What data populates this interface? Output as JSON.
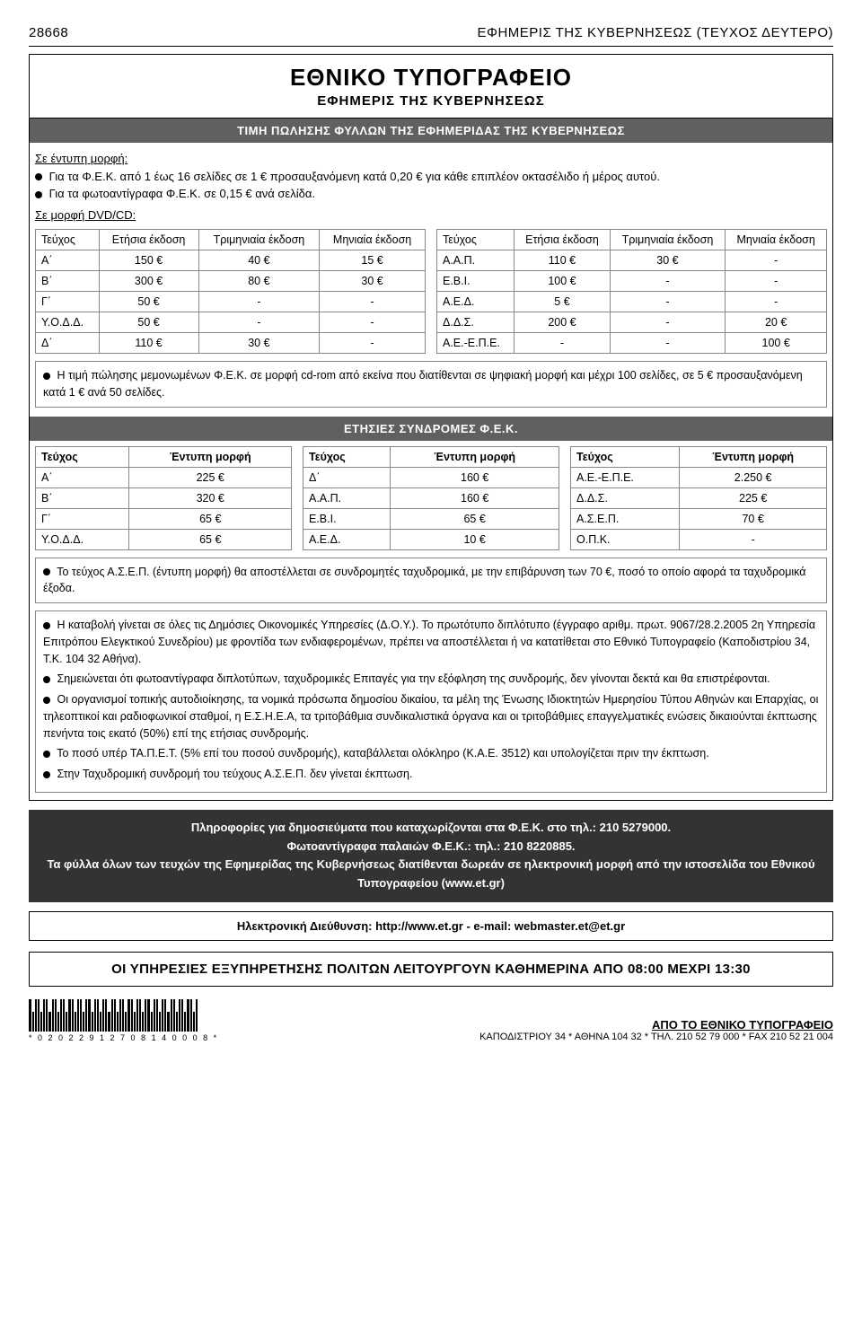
{
  "header": {
    "page_number": "28668",
    "title": "ΕΦΗΜΕΡΙΣ ΤΗΣ ΚΥΒΕΡΝΗΣΕΩΣ (ΤΕΥΧΟΣ ΔΕΥΤΕΡΟ)"
  },
  "title_box": {
    "main": "ΕΘΝΙΚΟ ΤΥΠΟΓΡΑΦΕΙΟ",
    "sub": "ΕΦΗΜΕΡΙΣ ΤΗΣ ΚΥΒΕΡΝΗΣΕΩΣ"
  },
  "sale_bar": "ΤΙΜΗ ΠΩΛΗΣΗΣ ΦΥΛΛΩΝ ΤΗΣ ΕΦΗΜΕΡΙΔΑΣ ΤΗΣ ΚΥΒΕΡΝΗΣΕΩΣ",
  "intro": {
    "printed_label": "Σε έντυπη μορφή:",
    "line1": "Για τα Φ.Ε.Κ. από 1 έως 16 σελίδες σε 1 € προσαυξανόμενη κατά 0,20 € για κάθε επιπλέον οκτασέλιδο ή μέρος αυτού.",
    "line2": "Για τα φωτοαντίγραφα Φ.Ε.Κ. σε 0,15 € ανά σελίδα.",
    "dvd_label": "Σε μορφή DVD/CD:"
  },
  "dvd_headers": [
    "Τεύχος",
    "Ετήσια έκδοση",
    "Τριμηνιαία έκδοση",
    "Μηνιαία έκδοση"
  ],
  "dvd_left_rows": [
    [
      "Α΄",
      "150 €",
      "40 €",
      "15 €"
    ],
    [
      "Β΄",
      "300 €",
      "80 €",
      "30 €"
    ],
    [
      "Γ΄",
      "50 €",
      "-",
      "-"
    ],
    [
      "Υ.Ο.Δ.Δ.",
      "50 €",
      "-",
      "-"
    ],
    [
      "Δ΄",
      "110 €",
      "30 €",
      "-"
    ]
  ],
  "dvd_right_rows": [
    [
      "Α.Α.Π.",
      "110 €",
      "30 €",
      "-"
    ],
    [
      "Ε.Β.Ι.",
      "100 €",
      "-",
      "-"
    ],
    [
      "Α.Ε.Δ.",
      "5 €",
      "-",
      "-"
    ],
    [
      "Δ.Δ.Σ.",
      "200 €",
      "-",
      "20 €"
    ],
    [
      "Α.Ε.-Ε.Π.Ε.",
      "-",
      "-",
      "100 €"
    ]
  ],
  "dvd_note": "Η τιμή πώλησης μεμονωμένων Φ.Ε.Κ. σε μορφή cd-rom από εκείνα που διατίθενται σε ψηφιακή μορφή και μέχρι 100 σελίδες, σε 5 € προσαυξανόμενη κατά 1 € ανά 50 σελίδες.",
  "subs_bar": "ΕΤΗΣΙΕΣ ΣΥΝΔΡΟΜΕΣ Φ.Ε.Κ.",
  "subs_headers": [
    "Τεύχος",
    "Έντυπη μορφή"
  ],
  "subs_col1": [
    [
      "Α΄",
      "225 €"
    ],
    [
      "Β΄",
      "320 €"
    ],
    [
      "Γ΄",
      "65 €"
    ],
    [
      "Υ.Ο.Δ.Δ.",
      "65 €"
    ]
  ],
  "subs_col2": [
    [
      "Δ΄",
      "160 €"
    ],
    [
      "Α.Α.Π.",
      "160 €"
    ],
    [
      "Ε.Β.Ι.",
      "65 €"
    ],
    [
      "Α.Ε.Δ.",
      "10 €"
    ]
  ],
  "subs_col3": [
    [
      "Α.Ε.-Ε.Π.Ε.",
      "2.250 €"
    ],
    [
      "Δ.Δ.Σ.",
      "225 €"
    ],
    [
      "Α.Σ.Ε.Π.",
      "70 €"
    ],
    [
      "Ο.Π.Κ.",
      "-"
    ]
  ],
  "subs_note": "Το τεύχος Α.Σ.Ε.Π. (έντυπη μορφή) θα αποστέλλεται σε συνδρομητές ταχυδρομικά, με την επιβάρυνση των 70 €, ποσό το οποίο αφορά τα ταχυδρομικά έξοδα.",
  "terms": [
    "Η καταβολή γίνεται σε όλες τις Δημόσιες Οικονομικές Υπηρεσίες (Δ.Ο.Υ.). Το πρωτότυπο διπλότυπο (έγγραφο αριθμ. πρωτ. 9067/28.2.2005 2η Υπηρεσία Επιτρόπου Ελεγκτικού Συνεδρίου) με φροντίδα των ενδιαφερομένων, πρέπει να αποστέλλεται ή να κατατίθεται στο Εθνικό Τυπογραφείο (Καποδιστρίου 34, Τ.Κ. 104 32 Αθήνα).",
    "Σημειώνεται ότι φωτοαντίγραφα διπλοτύπων, ταχυδρομικές Επιταγές για την εξόφληση της συνδρομής, δεν γίνονται δεκτά και θα επιστρέφονται.",
    "Οι οργανισμοί τοπικής αυτοδιοίκησης, τα νομικά πρόσωπα δημοσίου δικαίου, τα μέλη της Ένωσης Ιδιοκτητών Ημερησίου Τύπου Αθηνών και Επαρχίας, οι τηλεοπτικοί και ραδιοφωνικοί σταθμοί, η Ε.Σ.Η.Ε.Α, τα τριτοβάθμια συνδικαλιστικά όργανα και οι τριτοβάθμιες επαγγελματικές ενώσεις δικαιούνται έκπτωσης πενήντα τοις εκατό (50%) επί της ετήσιας συνδρομής.",
    "Το ποσό υπέρ ΤΑ.Π.Ε.Τ. (5% επί του ποσού συνδρομής), καταβάλλεται ολόκληρο (Κ.Α.Ε. 3512) και υπολογίζεται πριν την έκπτωση.",
    "Στην Ταχυδρομική συνδρομή του τεύχους Α.Σ.Ε.Π. δεν γίνεται έκπτωση."
  ],
  "info_bar": {
    "line1": "Πληροφορίες  για δημοσιεύματα που καταχωρίζονται στα Φ.Ε.Κ. στο τηλ.: 210 5279000.",
    "line2": "Φωτοαντίγραφα παλαιών Φ.Ε.Κ.: τηλ.: 210 8220885.",
    "line3": "Τα φύλλα όλων των τευχών της Εφημερίδας της Κυβερνήσεως διατίθενται δωρεάν σε ηλεκτρονική μορφή από την ιστοσελίδα του Εθνικού Τυπογραφείου (www.et.gr)"
  },
  "web_box": "Ηλεκτρονική Διεύθυνση: http://www.et.gr - e-mail: webmaster.et@et.gr",
  "hours_box": "ΟΙ ΥΠΗΡΕΣΙΕΣ ΕΞΥΠΗΡΕΤΗΣΗΣ ΠΟΛΙΤΩΝ ΛΕΙΤΟΥΡΓΟΥΝ ΚΑΘΗΜΕΡΙΝΑ ΑΠΟ 08:00 ΜΕΧΡΙ 13:30",
  "footer": {
    "barcode_text": "* 0 2 0 2 2 9 1 2 7 0 8 1 4 0 0 0 8 *",
    "right1": "ΑΠΟ ΤΟ ΕΘΝΙΚΟ ΤΥΠΟΓΡΑΦΕΙΟ",
    "right2": "ΚΑΠΟΔΙΣΤΡΙΟΥ 34 * ΑΘΗΝΑ 104 32 * ΤΗΛ. 210 52 79 000 * FAX 210 52 21 004"
  },
  "colors": {
    "bar_bg": "#606060",
    "info_bg": "#333333",
    "border": "#888888"
  }
}
